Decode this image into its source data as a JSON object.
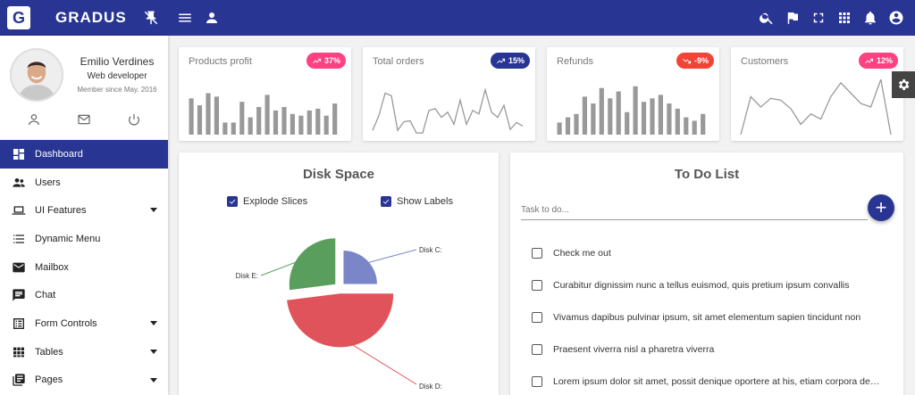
{
  "brand": {
    "logo_letter": "G",
    "name": "GRADUS"
  },
  "profile": {
    "name": "Emilio Verdines",
    "role": "Web developer",
    "since": "Member since May. 2016"
  },
  "menu": [
    {
      "label": "Dashboard",
      "icon": "dashboard-icon",
      "active": true,
      "caret": false
    },
    {
      "label": "Users",
      "icon": "users-icon",
      "active": false,
      "caret": false
    },
    {
      "label": "UI Features",
      "icon": "laptop-icon",
      "active": false,
      "caret": true
    },
    {
      "label": "Dynamic Menu",
      "icon": "list-icon",
      "active": false,
      "caret": false
    },
    {
      "label": "Mailbox",
      "icon": "mail-icon",
      "active": false,
      "caret": false
    },
    {
      "label": "Chat",
      "icon": "chat-icon",
      "active": false,
      "caret": false
    },
    {
      "label": "Form Controls",
      "icon": "form-icon",
      "active": false,
      "caret": true
    },
    {
      "label": "Tables",
      "icon": "grid-icon",
      "active": false,
      "caret": true
    },
    {
      "label": "Pages",
      "icon": "pages-icon",
      "active": false,
      "caret": true
    }
  ],
  "stats": [
    {
      "title": "Products profit",
      "badge": "37%",
      "trend": "up",
      "color": "#ff4081",
      "chart": {
        "type": "bar",
        "values": [
          42,
          34,
          48,
          44,
          14,
          14,
          38,
          20,
          32,
          46,
          28,
          32,
          24,
          22,
          28,
          30,
          22,
          36
        ]
      }
    },
    {
      "title": "Total orders",
      "badge": "15%",
      "trend": "up",
      "color": "#283593",
      "chart": {
        "type": "line",
        "values": [
          5,
          22,
          48,
          45,
          5,
          15,
          16,
          2,
          2,
          28,
          30,
          20,
          26,
          12,
          40,
          12,
          28,
          24,
          52,
          26,
          20,
          34,
          6,
          14,
          10
        ]
      }
    },
    {
      "title": "Refunds",
      "badge": "-9%",
      "trend": "down",
      "color": "#f44336",
      "chart": {
        "type": "bar",
        "values": [
          14,
          20,
          24,
          44,
          36,
          54,
          42,
          50,
          26,
          56,
          38,
          42,
          46,
          36,
          30,
          20,
          16,
          24
        ]
      }
    },
    {
      "title": "Customers",
      "badge": "12%",
      "trend": "up",
      "color": "#ff4081",
      "chart": {
        "type": "line",
        "values": [
          0,
          44,
          32,
          42,
          40,
          30,
          12,
          24,
          18,
          44,
          60,
          48,
          36,
          32,
          64,
          0
        ]
      }
    }
  ],
  "disk": {
    "title": "Disk Space",
    "options": [
      {
        "label": "Explode Slices",
        "checked": true
      },
      {
        "label": "Show Labels",
        "checked": true
      }
    ],
    "chart_data": {
      "type": "pie",
      "slices": [
        {
          "label": "Disk C:",
          "value": 25,
          "color": "#7b86c8"
        },
        {
          "label": "Disk D:",
          "value": 48,
          "color": "#e0535a"
        },
        {
          "label": "Disk E:",
          "value": 27,
          "color": "#5a9e5e"
        }
      ]
    }
  },
  "todo": {
    "title": "To Do List",
    "placeholder": "Task to do...",
    "add_label": "+",
    "items": [
      "Check me out",
      "Curabitur dignissim nunc a tellus euismod, quis pretium ipsum convallis",
      "Vivamus dapibus pulvinar ipsum, sit amet elementum sapien tincidunt non",
      "Praesent viverra nisl a pharetra viverra",
      "Lorem ipsum dolor sit amet, possit denique oportere at his, etiam corpora deseruisse te pro"
    ]
  }
}
